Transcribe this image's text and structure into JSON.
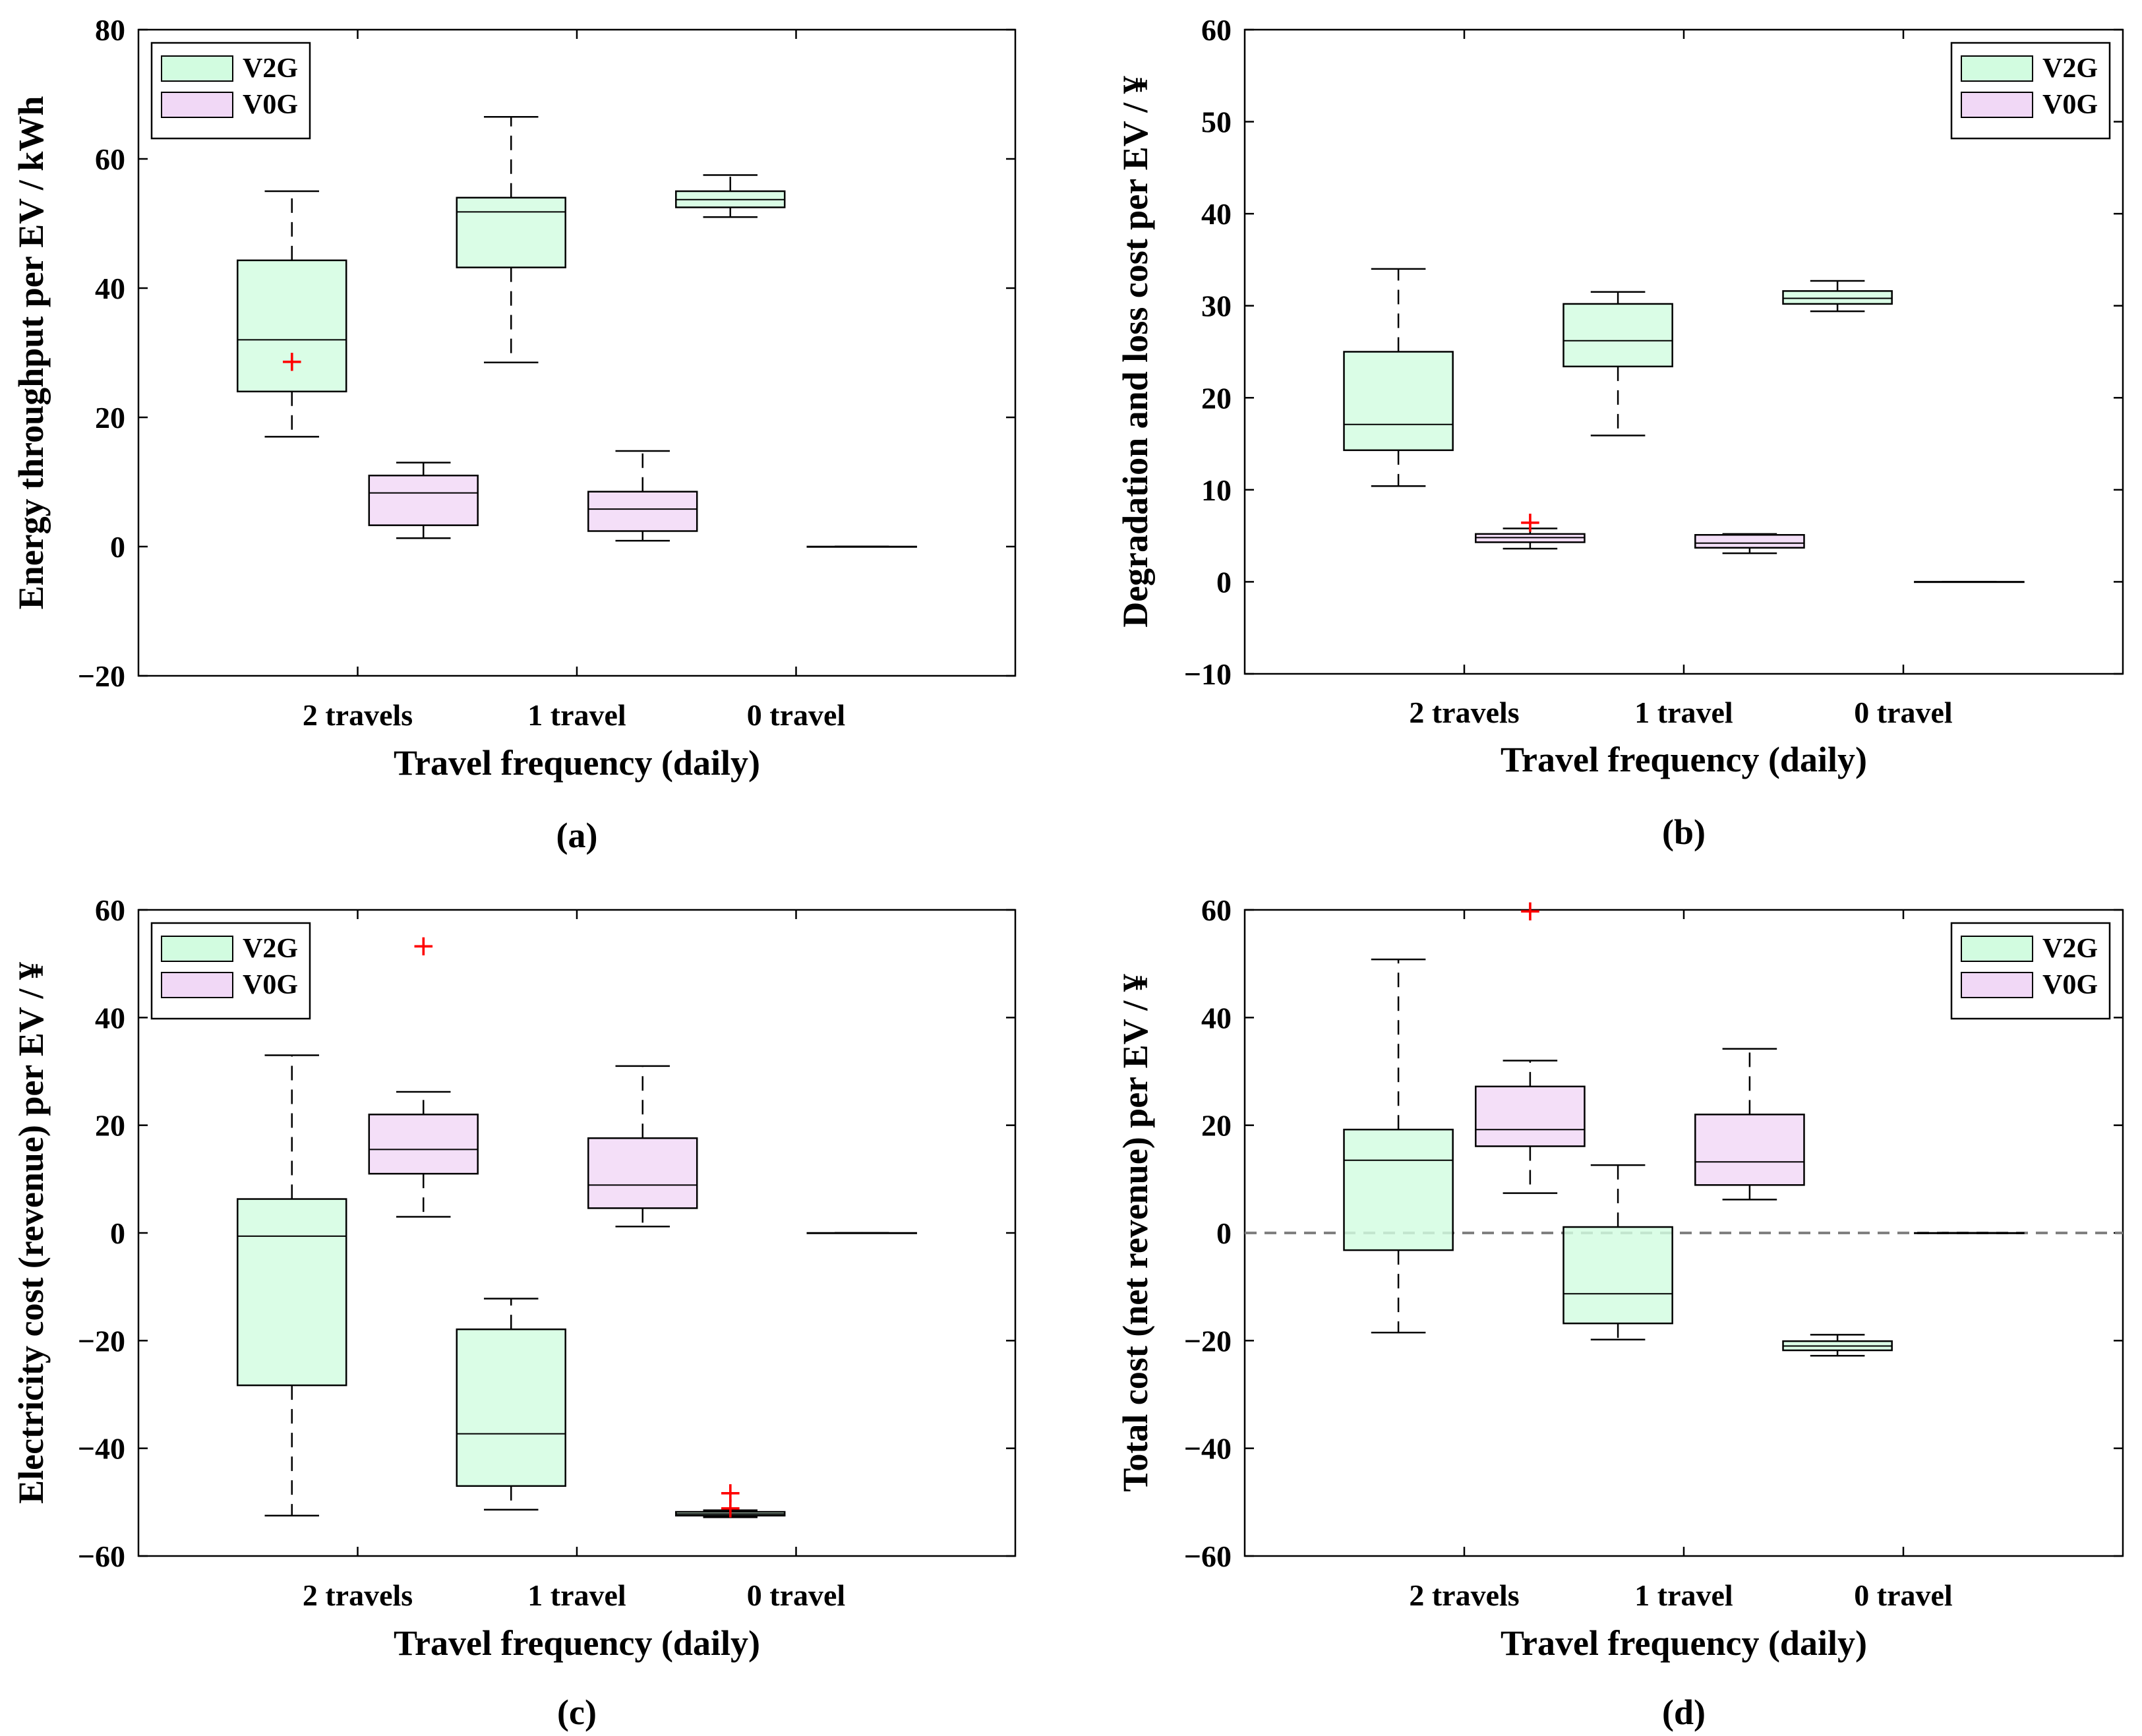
{
  "figure": {
    "colors": {
      "V2G": "#d2fce0",
      "V0G": "#f1d8f6",
      "outlier": "#ff0000",
      "axis": "#000000",
      "zero_line": "#808080"
    }
  },
  "chart_data": [
    {
      "id": "a",
      "type": "box",
      "panel_label": "(a)",
      "xlabel": "Travel frequency (daily)",
      "ylabel": "Energy throughput per EV / kWh",
      "categories": [
        "2 travels",
        "1 travel",
        "0 travel"
      ],
      "ylim": [
        -20,
        80
      ],
      "yticks": [
        -20,
        0,
        20,
        40,
        60,
        80
      ],
      "legend": {
        "position": "top-left",
        "entries": [
          "V2G",
          "V0G"
        ]
      },
      "zero_line": false,
      "series": [
        {
          "name": "V2G",
          "boxes": [
            {
              "min": 17,
              "q1": 24,
              "median": 32,
              "q3": 44.3,
              "max": 55,
              "outliers": [
                28.7
              ]
            },
            {
              "min": 28.5,
              "q1": 43.2,
              "median": 51.8,
              "q3": 54,
              "max": 66.5,
              "outliers": []
            },
            {
              "min": 51,
              "q1": 52.5,
              "median": 53.7,
              "q3": 55,
              "max": 57.5,
              "outliers": []
            }
          ]
        },
        {
          "name": "V0G",
          "boxes": [
            {
              "min": 1.3,
              "q1": 3.3,
              "median": 8.3,
              "q3": 11,
              "max": 13,
              "outliers": []
            },
            {
              "min": 0.9,
              "q1": 2.4,
              "median": 5.8,
              "q3": 8.5,
              "max": 14.8,
              "outliers": []
            },
            {
              "min": 0,
              "q1": 0,
              "median": 0,
              "q3": 0,
              "max": 0,
              "outliers": []
            }
          ]
        }
      ]
    },
    {
      "id": "b",
      "type": "box",
      "panel_label": "(b)",
      "xlabel": "Travel frequency (daily)",
      "ylabel": "Degradation and loss cost per EV / ¥",
      "categories": [
        "2 travels",
        "1 travel",
        "0 travel"
      ],
      "ylim": [
        -10,
        60
      ],
      "yticks": [
        -10,
        0,
        10,
        20,
        30,
        40,
        50,
        60
      ],
      "legend": {
        "position": "top-right",
        "entries": [
          "V2G",
          "V0G"
        ]
      },
      "zero_line": false,
      "series": [
        {
          "name": "V2G",
          "boxes": [
            {
              "min": 10.4,
              "q1": 14.3,
              "median": 17.1,
              "q3": 25,
              "max": 34,
              "outliers": []
            },
            {
              "min": 15.9,
              "q1": 23.4,
              "median": 26.2,
              "q3": 30.2,
              "max": 31.5,
              "outliers": []
            },
            {
              "min": 29.4,
              "q1": 30.2,
              "median": 30.8,
              "q3": 31.6,
              "max": 32.7,
              "outliers": []
            }
          ]
        },
        {
          "name": "V0G",
          "boxes": [
            {
              "min": 3.6,
              "q1": 4.3,
              "median": 4.8,
              "q3": 5.2,
              "max": 5.8,
              "outliers": [
                6.5
              ]
            },
            {
              "min": 3.1,
              "q1": 3.7,
              "median": 4.2,
              "q3": 5.1,
              "max": 5.2,
              "outliers": []
            },
            {
              "min": 0,
              "q1": 0,
              "median": 0,
              "q3": 0,
              "max": 0,
              "outliers": []
            }
          ]
        }
      ]
    },
    {
      "id": "c",
      "type": "box",
      "panel_label": "(c)",
      "xlabel": "Travel frequency (daily)",
      "ylabel": "Electricity cost (revenue) per EV / ¥",
      "categories": [
        "2 travels",
        "1 travel",
        "0 travel"
      ],
      "ylim": [
        -60,
        60
      ],
      "yticks": [
        -60,
        -40,
        -20,
        0,
        20,
        40,
        60
      ],
      "legend": {
        "position": "top-left",
        "entries": [
          "V2G",
          "V0G"
        ]
      },
      "zero_line": false,
      "series": [
        {
          "name": "V2G",
          "boxes": [
            {
              "min": -52.5,
              "q1": -28.3,
              "median": -0.6,
              "q3": 6.3,
              "max": 33,
              "outliers": []
            },
            {
              "min": -51.4,
              "q1": -47,
              "median": -37.3,
              "q3": -17.9,
              "max": -12.2,
              "outliers": []
            },
            {
              "min": -52.8,
              "q1": -52.5,
              "median": -52.2,
              "q3": -51.8,
              "max": -51.5,
              "outliers": [
                -48.2,
                -51.0
              ]
            }
          ]
        },
        {
          "name": "V0G",
          "boxes": [
            {
              "min": 3,
              "q1": 11,
              "median": 15.5,
              "q3": 22,
              "max": 26.2,
              "outliers": [
                53.4
              ]
            },
            {
              "min": 1.2,
              "q1": 4.6,
              "median": 8.9,
              "q3": 17.6,
              "max": 31,
              "outliers": []
            },
            {
              "min": 0,
              "q1": 0,
              "median": 0,
              "q3": 0,
              "max": 0,
              "outliers": []
            }
          ]
        }
      ]
    },
    {
      "id": "d",
      "type": "box",
      "panel_label": "(d)",
      "xlabel": "Travel frequency (daily)",
      "ylabel": "Total cost (net revenue) per EV / ¥",
      "categories": [
        "2 travels",
        "1 travel",
        "0 travel"
      ],
      "ylim": [
        -60,
        60
      ],
      "yticks": [
        -60,
        -40,
        -20,
        0,
        20,
        40,
        60
      ],
      "legend": {
        "position": "top-right",
        "entries": [
          "V2G",
          "V0G"
        ]
      },
      "zero_line": true,
      "series": [
        {
          "name": "V2G",
          "boxes": [
            {
              "min": -18.5,
              "q1": -3.2,
              "median": 13.5,
              "q3": 19.2,
              "max": 50.8,
              "outliers": []
            },
            {
              "min": -19.8,
              "q1": -16.8,
              "median": -11.3,
              "q3": 1.1,
              "max": 12.6,
              "outliers": []
            },
            {
              "min": -22.8,
              "q1": -21.8,
              "median": -21,
              "q3": -20.1,
              "max": -18.9,
              "outliers": []
            }
          ]
        },
        {
          "name": "V0G",
          "boxes": [
            {
              "min": 7.4,
              "q1": 16.1,
              "median": 19.2,
              "q3": 27.2,
              "max": 32,
              "outliers": [
                59.9
              ]
            },
            {
              "min": 6.2,
              "q1": 8.9,
              "median": 13.2,
              "q3": 22,
              "max": 34.2,
              "outliers": []
            },
            {
              "min": 0,
              "q1": 0,
              "median": 0,
              "q3": 0,
              "max": 0,
              "outliers": []
            }
          ]
        }
      ]
    }
  ]
}
